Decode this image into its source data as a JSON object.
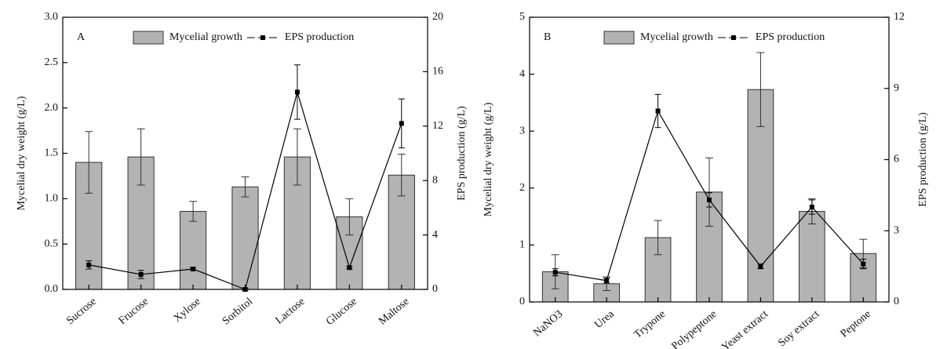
{
  "chart_data": [
    {
      "type": "bar",
      "panel_label": "A",
      "y_label": "Mycelial dry weight (g/L)",
      "y2_label": "EPS production (g/L)",
      "categories": [
        "Sucrose",
        "Frucose",
        "Xylose",
        "Sorbitol",
        "Lactose",
        "Glucose",
        "Maltose"
      ],
      "series": [
        {
          "name": "Mycelial growth",
          "type": "bar",
          "color": "#b3b3b3",
          "values": [
            1.4,
            1.46,
            0.86,
            1.13,
            1.46,
            0.8,
            1.26
          ],
          "errors": [
            0.34,
            0.31,
            0.11,
            0.11,
            0.31,
            0.2,
            0.23
          ]
        },
        {
          "name": "EPS production",
          "type": "line",
          "axis": "y2",
          "color": "#000000",
          "values": [
            1.8,
            1.1,
            1.5,
            0,
            14.5,
            1.6,
            12.2
          ],
          "errors": [
            0.3,
            0.3,
            0.1,
            0.1,
            2.0,
            0.1,
            1.8
          ]
        }
      ],
      "ylim": [
        0,
        3
      ],
      "yticks": [
        {
          "value": 0,
          "label": "0.0"
        },
        0.5,
        {
          "value": 1,
          "label": "1.0"
        },
        1.5,
        {
          "value": 2,
          "label": "2.0"
        },
        2.5,
        {
          "value": 3,
          "label": "3.0"
        }
      ],
      "y2lim": [
        0,
        20
      ],
      "y2ticks": [
        0,
        4,
        8,
        12,
        16,
        20
      ]
    },
    {
      "type": "bar",
      "panel_label": "B",
      "y_label": "Mycelial dry weight (g/L)",
      "y2_label": "EPS production (g/L)",
      "categories": [
        "NaNO3",
        "Urea",
        "Trypone",
        "Polypeptone",
        "Yeast extract",
        "Soy extract",
        "Peptone"
      ],
      "series": [
        {
          "name": "Mycelial growth",
          "type": "bar",
          "color": "#b3b3b3",
          "values": [
            0.53,
            0.32,
            1.13,
            1.93,
            3.73,
            1.59,
            0.85
          ],
          "errors": [
            0.3,
            0.12,
            0.3,
            0.6,
            0.65,
            0.22,
            0.25
          ]
        },
        {
          "name": "EPS production",
          "type": "line",
          "axis": "y2",
          "color": "#000000",
          "values": [
            1.25,
            0.9,
            8.05,
            4.3,
            1.5,
            4.0,
            1.6
          ],
          "errors": [
            0.15,
            0.1,
            0.7,
            0.3,
            0.1,
            0.3,
            0.2
          ]
        }
      ],
      "ylim": [
        0,
        5
      ],
      "yticks": [
        0,
        1,
        2,
        3,
        4,
        5
      ],
      "y2lim": [
        0,
        12
      ],
      "y2ticks": [
        0,
        3,
        6,
        9,
        12
      ]
    }
  ]
}
